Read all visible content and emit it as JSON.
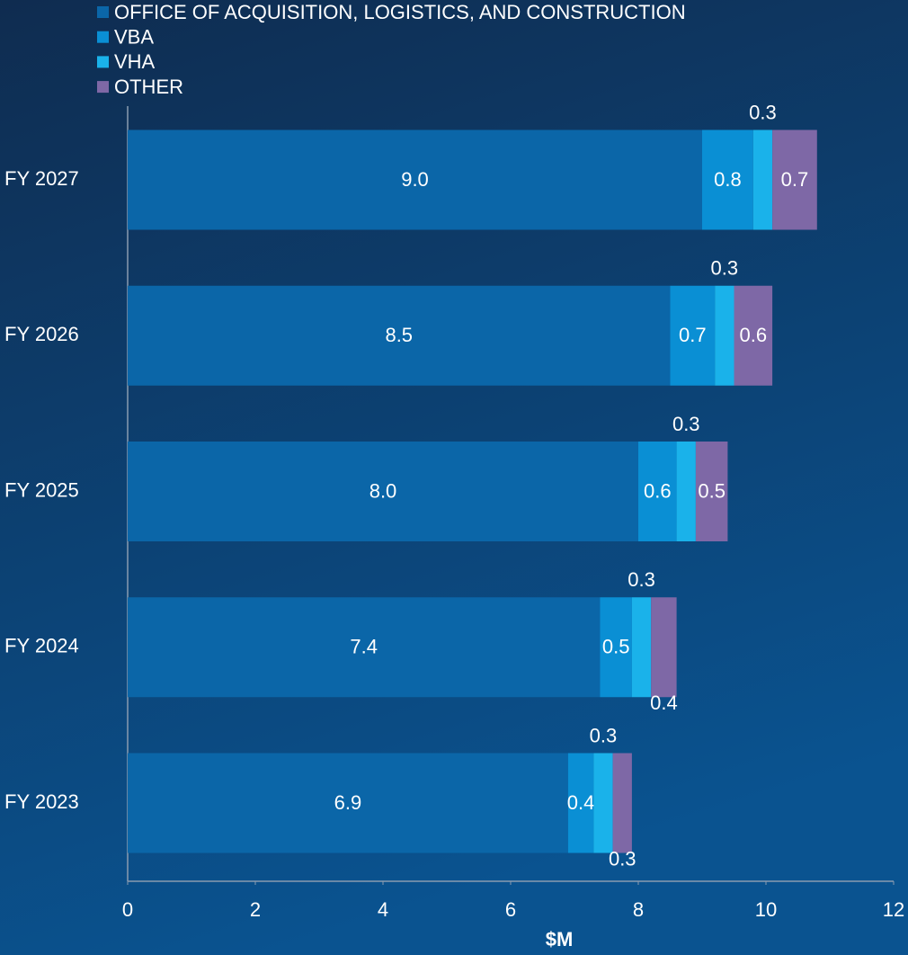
{
  "chart_data": {
    "type": "stacked_bar_horizontal",
    "xlabel": "$M",
    "categories": [
      "FY 2027",
      "FY 2026",
      "FY 2025",
      "FY 2024",
      "FY 2023"
    ],
    "series": [
      {
        "name": "OFFICE OF ACQUISITION, LOGISTICS, AND CONSTRUCTION",
        "color": "#0b66a8",
        "values": [
          9.0,
          8.5,
          8.0,
          7.4,
          6.9
        ],
        "value_labels": [
          "9.0",
          "8.5",
          "8.0",
          "7.4",
          "6.9"
        ]
      },
      {
        "name": "VBA",
        "color": "#0a8fd4",
        "values": [
          0.8,
          0.7,
          0.6,
          0.5,
          0.4
        ]
      },
      {
        "name": "VHA",
        "color": "#1ab2ea",
        "values": [
          0.3,
          0.3,
          0.3,
          0.3,
          0.3
        ]
      },
      {
        "name": "OTHER",
        "color": "#7e68a6",
        "values": [
          0.7,
          0.6,
          0.5,
          0.4,
          0.3
        ]
      }
    ],
    "xlim": [
      0,
      12
    ],
    "xticks": [
      0,
      2,
      4,
      6,
      8,
      10,
      12
    ],
    "grid": false,
    "legend": "top-left"
  }
}
